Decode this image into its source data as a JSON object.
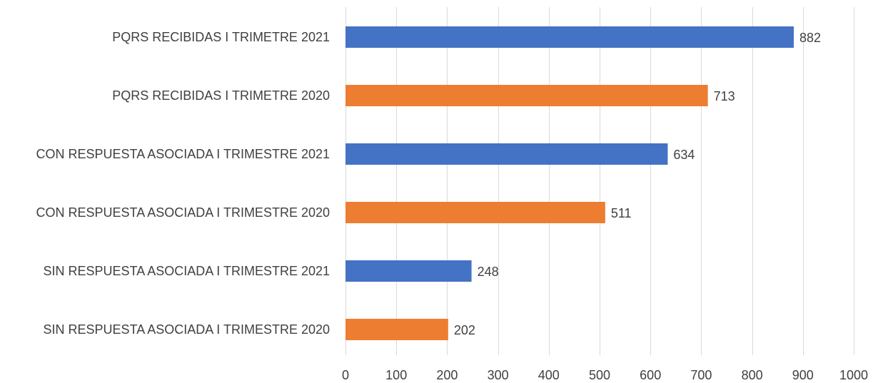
{
  "chart_data": {
    "type": "bar",
    "orientation": "horizontal",
    "categories": [
      "PQRS RECIBIDAS I TRIMETRE 2021",
      "PQRS RECIBIDAS I TRIMETRE 2020",
      "CON RESPUESTA ASOCIADA I TRIMESTRE 2021",
      "CON RESPUESTA ASOCIADA I TRIMESTRE 2020",
      "SIN RESPUESTA ASOCIADA I TRIMESTRE 2021",
      "SIN RESPUESTA ASOCIADA I TRIMESTRE 2020"
    ],
    "values": [
      882,
      713,
      634,
      511,
      248,
      202
    ],
    "bar_colors": [
      "#4472c4",
      "#ed7d31",
      "#4472c4",
      "#ed7d31",
      "#4472c4",
      "#ed7d31"
    ],
    "data_labels": [
      "882",
      "713",
      "634",
      "511",
      "248",
      "202"
    ],
    "xlim": [
      0,
      1000
    ],
    "x_ticks": [
      0,
      100,
      200,
      300,
      400,
      500,
      600,
      700,
      800,
      900,
      1000
    ],
    "x_tick_labels": [
      "0",
      "100",
      "200",
      "300",
      "400",
      "500",
      "600",
      "700",
      "800",
      "900",
      "1000"
    ],
    "grid": true,
    "title": "",
    "xlabel": "",
    "ylabel": ""
  }
}
